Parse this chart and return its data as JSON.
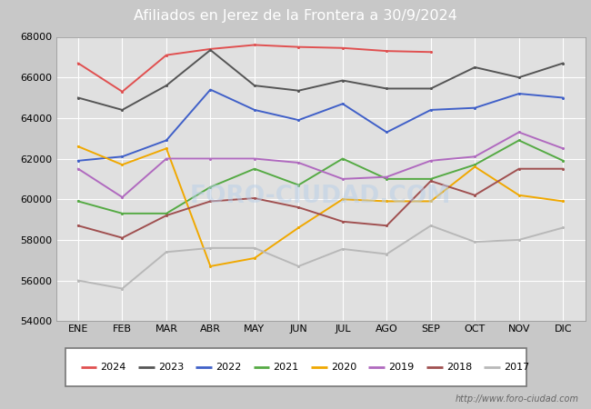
{
  "title": "Afiliados en Jerez de la Frontera a 30/9/2024",
  "title_bg_color": "#4d87d6",
  "title_text_color": "white",
  "outer_bg_color": "#c8c8c8",
  "plot_bg_color": "#e0e0e0",
  "ylim": [
    54000,
    68000
  ],
  "yticks": [
    54000,
    56000,
    58000,
    60000,
    62000,
    64000,
    66000,
    68000
  ],
  "months": [
    "ENE",
    "FEB",
    "MAR",
    "ABR",
    "MAY",
    "JUN",
    "JUL",
    "AGO",
    "SEP",
    "OCT",
    "NOV",
    "DIC"
  ],
  "watermark": "http://www.foro-ciudad.com",
  "series": {
    "2024": {
      "color": "#e05050",
      "data": [
        66700,
        65300,
        67100,
        67400,
        67600,
        67500,
        67450,
        67300,
        67250,
        null,
        null,
        null
      ]
    },
    "2023": {
      "color": "#555555",
      "data": [
        65000,
        64400,
        65600,
        67350,
        65600,
        65350,
        65850,
        65450,
        65450,
        66500,
        66000,
        66700
      ]
    },
    "2022": {
      "color": "#4060c8",
      "data": [
        61900,
        62100,
        62900,
        65400,
        64400,
        63900,
        64700,
        63300,
        64400,
        64500,
        65200,
        65000
      ]
    },
    "2021": {
      "color": "#55aa44",
      "data": [
        59900,
        59300,
        59300,
        60600,
        61500,
        60700,
        62000,
        61000,
        61000,
        61700,
        62900,
        61900
      ]
    },
    "2020": {
      "color": "#f0a800",
      "data": [
        62600,
        61700,
        62500,
        56700,
        57100,
        58600,
        60000,
        59900,
        59900,
        61600,
        60200,
        59900
      ]
    },
    "2019": {
      "color": "#b06abf",
      "data": [
        61500,
        60100,
        62000,
        62000,
        62000,
        61800,
        61000,
        61100,
        61900,
        62100,
        63300,
        62500
      ]
    },
    "2018": {
      "color": "#a05050",
      "data": [
        58700,
        58100,
        59200,
        59900,
        60050,
        59600,
        58900,
        58700,
        60900,
        60200,
        61500,
        61500
      ]
    },
    "2017": {
      "color": "#b8b8b8",
      "data": [
        56000,
        55600,
        57400,
        57600,
        57600,
        56700,
        57550,
        57300,
        58700,
        57900,
        58000,
        58600
      ]
    }
  },
  "legend_order": [
    "2024",
    "2023",
    "2022",
    "2021",
    "2020",
    "2019",
    "2018",
    "2017"
  ]
}
